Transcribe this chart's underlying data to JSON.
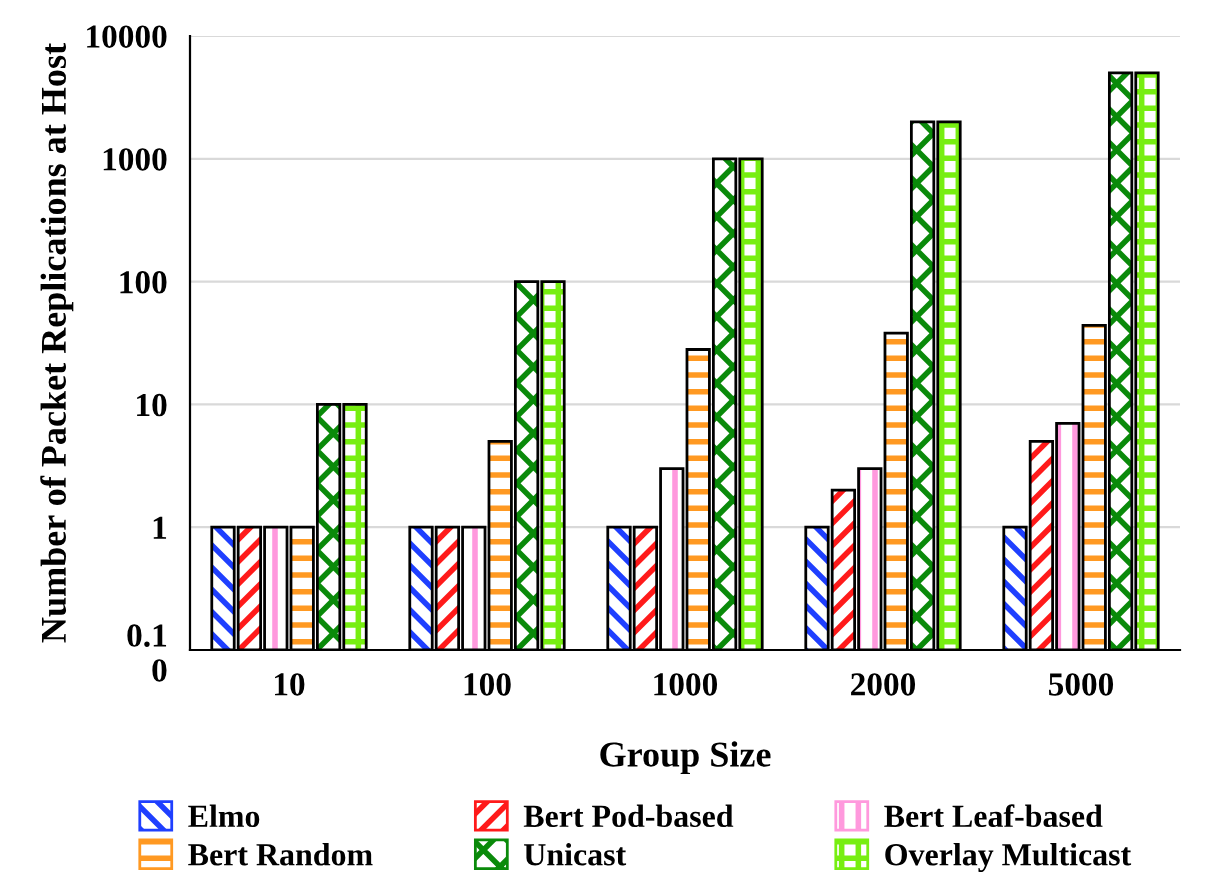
{
  "chart_data": {
    "type": "bar",
    "xlabel": "Group Size",
    "ylabel": "Number of Packet Replications at Host",
    "categories": [
      "10",
      "100",
      "1000",
      "2000",
      "5000"
    ],
    "series": [
      {
        "name": "Elmo",
        "color": "#1f3fff",
        "values": [
          1,
          1,
          1,
          1,
          1
        ]
      },
      {
        "name": "Bert Pod-based",
        "color": "#ff1a1a",
        "values": [
          1,
          1,
          1,
          2,
          5
        ]
      },
      {
        "name": "Bert Leaf-based",
        "color": "#ff99dd",
        "values": [
          1,
          1,
          3,
          3,
          7
        ]
      },
      {
        "name": "Bert Random",
        "color": "#ff9922",
        "values": [
          1,
          5,
          28,
          38,
          44
        ]
      },
      {
        "name": "Unicast",
        "color": "#0a8a0a",
        "values": [
          10,
          100,
          1000,
          2000,
          5000
        ]
      },
      {
        "name": "Overlay Multicast",
        "color": "#77ee11",
        "values": [
          10,
          100,
          1000,
          2000,
          5000
        ]
      }
    ],
    "log": "y",
    "ylim": [
      0.1,
      10000
    ],
    "yticks": [
      {
        "value": 0.1,
        "label": "0.1\n0"
      },
      1,
      10,
      100,
      1000,
      10000
    ],
    "grid": "y",
    "legend": "bottom"
  }
}
